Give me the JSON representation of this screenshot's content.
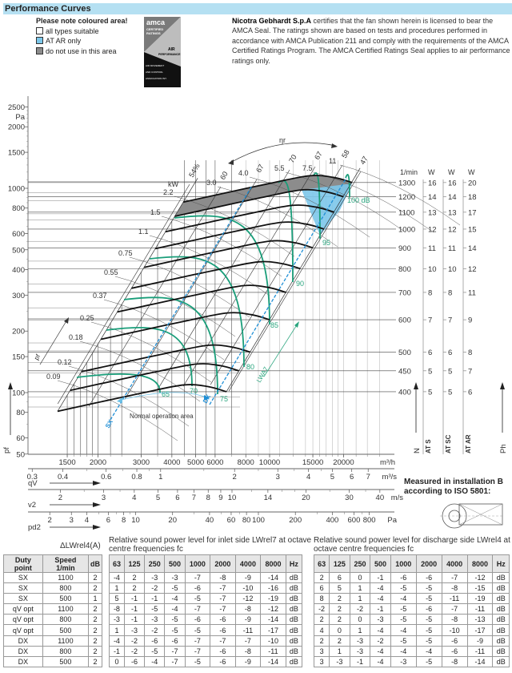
{
  "header": {
    "title": "Performance Curves"
  },
  "legend": {
    "title": "Please note coloured area!",
    "items": [
      {
        "label": "all types suitable",
        "color": "#ffffff"
      },
      {
        "label": "AT AR only",
        "color": "#7cc7ea"
      },
      {
        "label": "do not use in this area",
        "color": "#8c8c8c"
      }
    ]
  },
  "logo": {
    "text": "amca CERTIFIED RATINGS AIR PERFORMANCE AIR MOVEMENT AND CONTROL ASSOCIATION INTERNATIONAL, INC."
  },
  "certification": {
    "company": "Nicotra Gebhardt S.p.A",
    "text": " certifies that the fan shown herein is licensed to bear the AMCA Seal. The ratings shown are based on tests and procedures performed in accordance with AMCA Publication 211 and comply with the requirements of the AMCA Certified Ratings Program. The AMCA Certified Ratings Seal applies to air performance ratings only."
  },
  "chart_data": {
    "type": "line",
    "title": "",
    "ylabel": "pf",
    "yunit": "Pa",
    "yscale": "log",
    "ylim": [
      50,
      2500
    ],
    "yticks": [
      50,
      60,
      80,
      100,
      150,
      200,
      300,
      400,
      500,
      600,
      800,
      1000,
      1500,
      2000,
      2500
    ],
    "x_axes": [
      {
        "unit": "m³/h",
        "label": "",
        "ticks": [
          1500,
          2000,
          3000,
          4000,
          5000,
          6000,
          8000,
          10000,
          15000,
          20000
        ]
      },
      {
        "unit": "m³/s",
        "label": "qV",
        "ticks": [
          0.3,
          0.4,
          0.6,
          0.8,
          1,
          2,
          3,
          4,
          5,
          6,
          7
        ]
      },
      {
        "unit": "m/s",
        "label": "v2",
        "ticks": [
          2,
          3,
          4,
          5,
          6,
          7,
          8,
          9,
          10,
          14,
          20,
          30,
          40
        ]
      },
      {
        "unit": "Pa",
        "label": "pd2",
        "ticks": [
          2,
          3,
          4,
          6,
          8,
          10,
          20,
          40,
          60,
          80,
          100,
          200,
          400,
          600,
          800
        ]
      }
    ],
    "speed_unit": "1/min",
    "speeds": [
      1300,
      1200,
      1100,
      1000,
      900,
      800,
      700,
      600,
      500,
      450,
      400
    ],
    "power_columns": [
      {
        "name": "AT S",
        "unit": "W",
        "values": [
          16,
          14,
          13,
          12,
          11,
          10,
          8,
          7,
          6,
          5,
          5
        ]
      },
      {
        "name": "AT SC",
        "unit": "W",
        "values": [
          16,
          14,
          13,
          12,
          11,
          10,
          8,
          7,
          6,
          5,
          5
        ]
      },
      {
        "name": "AT AR",
        "unit": "W",
        "values": [
          20,
          18,
          17,
          15,
          14,
          12,
          11,
          9,
          8,
          7,
          6
        ]
      }
    ],
    "speed_axis_label": "N",
    "power_axis_label": "Ph",
    "base_curve_400rpm": {
      "q_m3h": [
        1370,
        1960,
        3080,
        4480,
        5610,
        6670
      ],
      "pf_pa": [
        81,
        89,
        100,
        109,
        107,
        101
      ]
    },
    "kw_label": "kW",
    "kw_lines": [
      "0.09",
      "0.12",
      "0.18",
      "0.25",
      "0.37",
      "0.55",
      "0.75",
      "1.1",
      "1.5",
      "2.2",
      "3.0",
      "4.0",
      "5.5",
      "7.5",
      "11"
    ],
    "efficiency_label": "ηr",
    "efficiency_lines": [
      "54%",
      "60",
      "67",
      "70",
      "67",
      "58",
      "47"
    ],
    "sound_label": "LWA7",
    "sound_levels": [
      "65",
      "70",
      "75",
      "80",
      "85",
      "90",
      "95",
      "100 dB"
    ],
    "duty_lines": [
      "SX",
      "DX"
    ],
    "annotation": "Normal operation area",
    "pressure_arrow_label": "pf"
  },
  "installation": {
    "text1": "Measured in installation B",
    "text2": "according to ISO 5801:"
  },
  "delta_table": {
    "caption": "ΔLWrel4(A)",
    "headers": [
      "Duty point",
      "Speed 1/min",
      "dB"
    ],
    "rows": [
      [
        "SX",
        "1100",
        "2"
      ],
      [
        "SX",
        "800",
        "2"
      ],
      [
        "SX",
        "500",
        "1"
      ],
      [
        "qV opt",
        "1100",
        "2"
      ],
      [
        "qV opt",
        "800",
        "2"
      ],
      [
        "qV opt",
        "500",
        "2"
      ],
      [
        "DX",
        "1100",
        "2"
      ],
      [
        "DX",
        "800",
        "2"
      ],
      [
        "DX",
        "500",
        "2"
      ]
    ]
  },
  "inlet_table": {
    "caption1": "Relative sound power level for inlet side LWrel7 at octave",
    "caption2": "centre frequencies fc",
    "headers": [
      "63",
      "125",
      "250",
      "500",
      "1000",
      "2000",
      "4000",
      "8000",
      "Hz"
    ],
    "rows": [
      [
        "-4",
        "2",
        "-3",
        "-3",
        "-7",
        "-8",
        "-9",
        "-14",
        "dB"
      ],
      [
        "1",
        "2",
        "-2",
        "-5",
        "-6",
        "-7",
        "-10",
        "-16",
        "dB"
      ],
      [
        "5",
        "-1",
        "-1",
        "-4",
        "-5",
        "-7",
        "-12",
        "-19",
        "dB"
      ],
      [
        "-8",
        "-1",
        "-5",
        "-4",
        "-7",
        "-7",
        "-8",
        "-12",
        "dB"
      ],
      [
        "-3",
        "-1",
        "-3",
        "-5",
        "-6",
        "-6",
        "-9",
        "-14",
        "dB"
      ],
      [
        "1",
        "-3",
        "-2",
        "-5",
        "-5",
        "-6",
        "-11",
        "-17",
        "dB"
      ],
      [
        "-4",
        "-2",
        "-6",
        "-6",
        "-7",
        "-7",
        "-7",
        "-10",
        "dB"
      ],
      [
        "-1",
        "-2",
        "-5",
        "-7",
        "-7",
        "-6",
        "-8",
        "-11",
        "dB"
      ],
      [
        "0",
        "-6",
        "-4",
        "-7",
        "-5",
        "-6",
        "-9",
        "-14",
        "dB"
      ]
    ]
  },
  "discharge_table": {
    "caption1": "Relative sound power level for discharge side LWrel4 at",
    "caption2": "octave centre frequencies fc",
    "headers": [
      "63",
      "125",
      "250",
      "500",
      "1000",
      "2000",
      "4000",
      "8000",
      "Hz"
    ],
    "rows": [
      [
        "2",
        "6",
        "0",
        "-1",
        "-6",
        "-6",
        "-7",
        "-12",
        "dB"
      ],
      [
        "6",
        "5",
        "1",
        "-4",
        "-5",
        "-5",
        "-8",
        "-15",
        "dB"
      ],
      [
        "8",
        "2",
        "1",
        "-4",
        "-4",
        "-5",
        "-11",
        "-19",
        "dB"
      ],
      [
        "-2",
        "2",
        "-2",
        "-1",
        "-5",
        "-6",
        "-7",
        "-11",
        "dB"
      ],
      [
        "2",
        "2",
        "0",
        "-3",
        "-5",
        "-5",
        "-8",
        "-13",
        "dB"
      ],
      [
        "4",
        "0",
        "1",
        "-4",
        "-4",
        "-5",
        "-10",
        "-17",
        "dB"
      ],
      [
        "2",
        "2",
        "-3",
        "-2",
        "-5",
        "-5",
        "-6",
        "-9",
        "dB"
      ],
      [
        "3",
        "1",
        "-3",
        "-4",
        "-4",
        "-4",
        "-6",
        "-11",
        "dB"
      ],
      [
        "3",
        "-3",
        "-1",
        "-4",
        "-3",
        "-5",
        "-8",
        "-14",
        "dB"
      ]
    ]
  }
}
